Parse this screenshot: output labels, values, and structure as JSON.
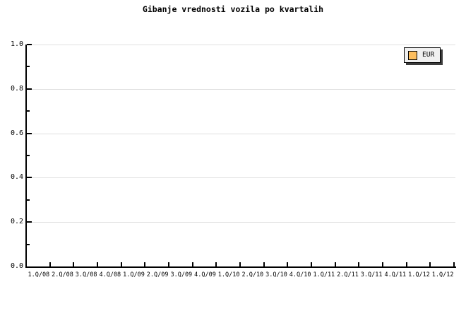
{
  "title": "Gibanje vrednosti vozila po kvartalih",
  "legend": {
    "label": "EUR",
    "swatch_color": "#FDBE5E"
  },
  "colors": {
    "background": "#ffffff",
    "axis": "#000000",
    "text": "#000000",
    "grid": "#e0e0e0",
    "legend_bg": "#f0f0f0",
    "legend_shadow": "#3c3c3c"
  },
  "chart_data": {
    "type": "line",
    "title": "Gibanje vrednosti vozila po kvartalih",
    "categories": [
      "1.Q/08",
      "2.Q/08",
      "3.Q/08",
      "4.Q/08",
      "1.Q/09",
      "2.Q/09",
      "3.Q/09",
      "4.Q/09",
      "1.Q/10",
      "2.Q/10",
      "3.Q/10",
      "4.Q/10",
      "1.Q/11",
      "2.Q/11",
      "3.Q/11",
      "4.Q/11",
      "1.Q/12",
      "1.Q/12"
    ],
    "series": [
      {
        "name": "EUR",
        "color": "#FDBE5E",
        "values": []
      }
    ],
    "xlabel": "",
    "ylabel": "",
    "ylim": [
      0.0,
      1.0
    ],
    "y_major_step": 0.2,
    "y_minor_step": 0.1,
    "y_tick_labels": [
      "0.0",
      "0.2",
      "0.4",
      "0.6",
      "0.8",
      "1.0"
    ],
    "grid": "horizontal major gridlines",
    "legend_position": "top-right"
  }
}
